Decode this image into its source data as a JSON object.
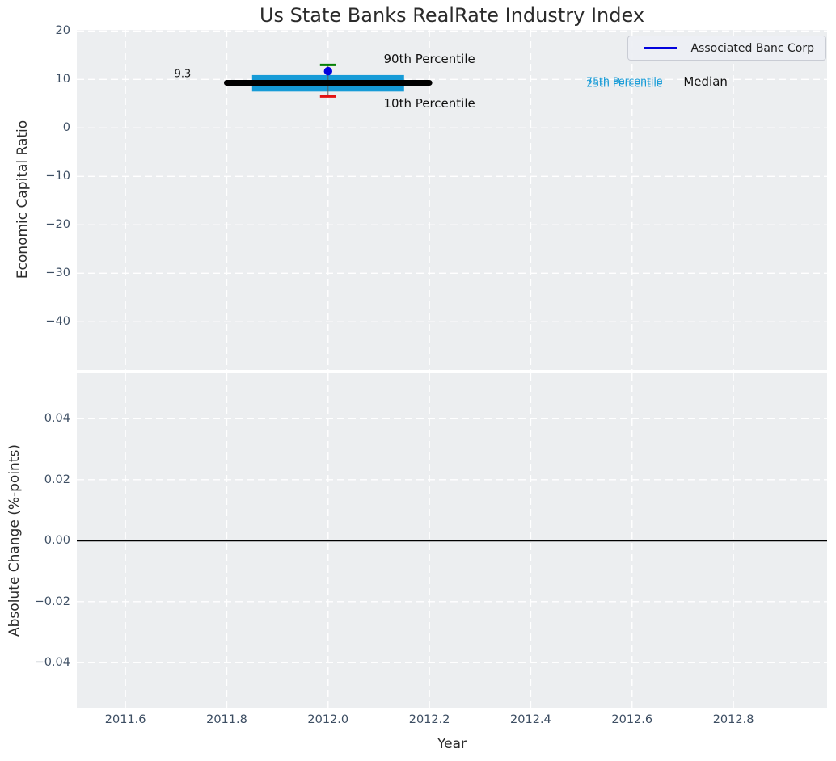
{
  "legend": {
    "label": "Associated Banc Corp",
    "line_color": "#0202dd",
    "background": "#edeff4",
    "border_color": "#c9ccd4"
  },
  "chart_data": [
    {
      "type": "box",
      "title": "Us State Banks RealRate Industry Index",
      "ylabel": "Economic Capital Ratio",
      "xlim": [
        2011.504,
        2012.985
      ],
      "ylim": [
        -49.95,
        20.22
      ],
      "xticks": [
        2011.6,
        2011.8,
        2012.0,
        2012.2,
        2012.4,
        2012.6,
        2012.8
      ],
      "xtick_decimals": 1,
      "show_xticklabels": false,
      "yticks": [
        20,
        10,
        0,
        -10,
        -20,
        -30,
        -40
      ],
      "ytick_decimals": 0,
      "grid": true,
      "legend_position": "upper right",
      "box": {
        "x_center": 2012.0,
        "box_x_range": [
          2011.85,
          2012.15
        ],
        "median_x_range": [
          2011.8,
          2012.2
        ],
        "median": 9.3,
        "p75": 10.9,
        "p25": 7.5,
        "p90": 13.0,
        "p10": 6.5,
        "box_color": "#169bd7",
        "median_color": "#000000",
        "p90_cap_color": "#068006",
        "p10_cap_color": "#e31212",
        "whisker_color": "#5a5a5a"
      },
      "company_point": {
        "x": 2012.0,
        "y": 11.7,
        "color": "#0202dd",
        "name": "Associated Banc Corp"
      },
      "annotations": [
        {
          "text": "9.3",
          "x": 2011.713,
          "y": 11.0,
          "color": "#1a1a1a",
          "font_size": 13
        },
        {
          "text": "90th Percentile",
          "x": 2012.2,
          "y": 14.3,
          "color": "#111111",
          "font_size": 15
        },
        {
          "text": "10th Percentile",
          "x": 2012.2,
          "y": 5.0,
          "color": "#111111",
          "font_size": 15
        },
        {
          "text": "75th Percentile",
          "x": 2012.585,
          "y": 9.75,
          "color": "#169bd7",
          "font_size": 12.5
        },
        {
          "text": "25th Percentile",
          "x": 2012.585,
          "y": 9.2,
          "color": "#169bd7",
          "font_size": 12.5
        },
        {
          "text": "Median",
          "x": 2012.745,
          "y": 9.5,
          "color": "#111111",
          "font_size": 15
        }
      ]
    },
    {
      "type": "line",
      "ylabel": "Absolute Change (%-points)",
      "xlabel": "Year",
      "xlim": [
        2011.504,
        2012.985
      ],
      "ylim": [
        -0.055,
        0.0549
      ],
      "xticks": [
        2011.6,
        2011.8,
        2012.0,
        2012.2,
        2012.4,
        2012.6,
        2012.8
      ],
      "xtick_decimals": 1,
      "show_xticklabels": true,
      "yticks": [
        0.04,
        0.02,
        0.0,
        -0.02,
        -0.04
      ],
      "ytick_decimals": 2,
      "grid": true,
      "zero_line": {
        "y": 0.0,
        "color": "#000000"
      },
      "series": []
    }
  ]
}
